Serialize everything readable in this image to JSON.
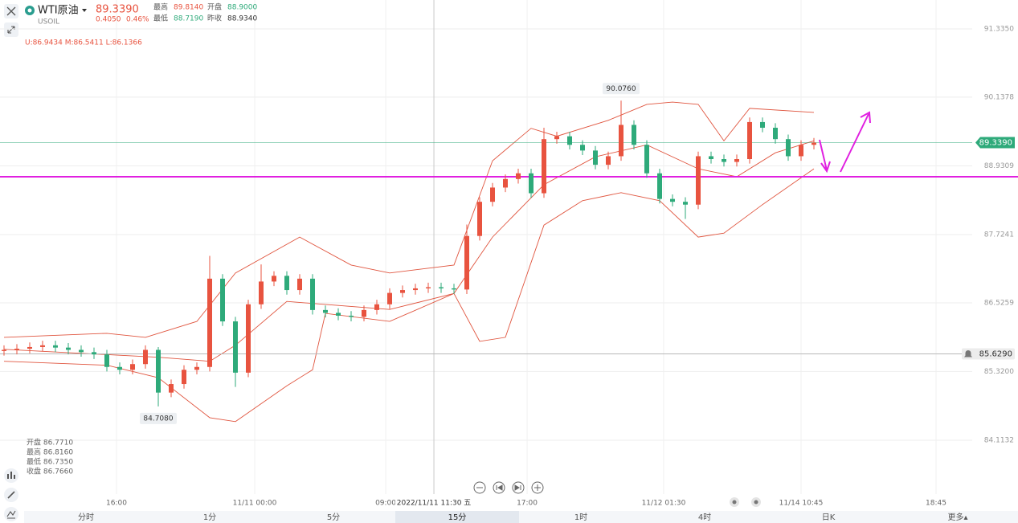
{
  "header": {
    "symbol": "WTI原油",
    "code": "USOIL",
    "price": "89.3390",
    "change": "0.4050",
    "change_pct": "0.46%",
    "stats": [
      [
        "最高",
        "89.8140"
      ],
      [
        "开盘",
        "88.9000"
      ],
      [
        "最低",
        "88.7190"
      ],
      [
        "昨收",
        "88.9340"
      ]
    ]
  },
  "indicator": "U:86.9434  M:86.5411  L:86.1366",
  "ohlc_panel": [
    "开盘 86.7710",
    "最高 86.8160",
    "最低 86.7350",
    "收盘 86.7660"
  ],
  "tabs": [
    "分时",
    "1分",
    "5分",
    "15分",
    "1时",
    "4时",
    "日K",
    "更多▴"
  ],
  "active_tab": 3,
  "chart_data": {
    "type": "candlestick",
    "up_color": "#e8533f",
    "down_color": "#2eaa7a",
    "xlim": [
      -0.3125,
      75.3125
    ],
    "xticks": [
      {
        "value": 8.75,
        "label": "16:00"
      },
      {
        "value": 19.5,
        "label": "11/11 00:00"
      },
      {
        "value": 29.69,
        "label": "09:00"
      },
      {
        "value": 40.69,
        "label": "17:00"
      },
      {
        "value": 51.31,
        "label": "11/12 01:30"
      },
      {
        "value": 62,
        "label": "11/14 10:45"
      },
      {
        "value": 72.5,
        "label": "18:45"
      }
    ],
    "ylim": [
      83.168,
      91.843
    ],
    "yticks": [
      {
        "value": 91.335,
        "label": "91.3350"
      },
      {
        "value": 90.1378,
        "label": "90.1378"
      },
      {
        "value": 88.9309,
        "label": "88.9309"
      },
      {
        "value": 87.7241,
        "label": "87.7241"
      },
      {
        "value": 86.5259,
        "label": "86.5259"
      },
      {
        "value": 85.32,
        "label": "85.3200"
      },
      {
        "value": 84.1132,
        "label": "84.1132"
      }
    ],
    "grid": true,
    "candles": {
      "open": [
        85.68,
        85.7,
        85.72,
        85.75,
        85.78,
        85.74,
        85.7,
        85.66,
        85.62,
        85.4,
        85.35,
        85.45,
        85.7,
        84.95,
        85.1,
        85.35,
        85.4,
        86.95,
        86.2,
        85.3,
        86.5,
        86.9,
        87.0,
        86.75,
        86.95,
        86.4,
        86.35,
        86.3,
        86.28,
        86.4,
        86.5,
        86.7,
        86.75,
        86.78,
        86.8,
        86.78,
        86.76,
        87.7,
        88.3,
        88.55,
        88.7,
        88.8,
        88.45,
        89.4,
        89.45,
        89.3,
        89.2,
        88.95,
        89.1,
        89.65,
        89.3,
        88.8,
        88.35,
        88.3,
        88.25,
        89.1,
        89.05,
        89.0,
        89.05,
        89.7,
        89.6,
        89.4,
        89.1,
        89.3
      ],
      "high": [
        85.78,
        85.8,
        85.83,
        85.86,
        85.86,
        85.82,
        85.78,
        85.74,
        85.7,
        85.48,
        85.53,
        85.78,
        85.75,
        85.18,
        85.43,
        85.48,
        87.35,
        87.03,
        86.28,
        86.58,
        87.2,
        87.08,
        87.08,
        87.03,
        87.03,
        86.48,
        86.43,
        86.38,
        86.48,
        86.58,
        86.78,
        86.83,
        86.86,
        86.88,
        86.88,
        86.86,
        87.9,
        88.38,
        88.63,
        88.78,
        88.88,
        88.88,
        89.6,
        89.53,
        89.53,
        89.38,
        89.28,
        89.18,
        90.076,
        89.73,
        89.38,
        88.88,
        88.43,
        88.38,
        89.18,
        89.18,
        89.13,
        89.13,
        89.78,
        89.78,
        89.68,
        89.48,
        89.38,
        89.42
      ],
      "low": [
        85.6,
        85.62,
        85.64,
        85.67,
        85.66,
        85.62,
        85.58,
        85.54,
        85.32,
        85.27,
        85.27,
        85.37,
        84.708,
        84.87,
        85.02,
        85.27,
        85.32,
        86.12,
        85.05,
        85.22,
        86.42,
        86.82,
        86.67,
        86.67,
        86.32,
        86.27,
        86.22,
        86.2,
        86.2,
        86.32,
        86.42,
        86.62,
        86.67,
        86.7,
        86.7,
        86.68,
        86.68,
        87.62,
        88.22,
        88.47,
        88.62,
        88.37,
        88.37,
        89.32,
        89.22,
        89.12,
        88.87,
        88.87,
        89.02,
        89.22,
        88.72,
        88.27,
        88.22,
        88.0,
        88.17,
        88.97,
        88.92,
        88.92,
        88.97,
        89.52,
        89.32,
        89.02,
        89.02,
        89.22
      ],
      "close": [
        85.7,
        85.72,
        85.75,
        85.78,
        85.74,
        85.7,
        85.66,
        85.62,
        85.4,
        85.35,
        85.45,
        85.7,
        84.95,
        85.1,
        85.35,
        85.4,
        86.95,
        86.2,
        85.3,
        86.5,
        86.9,
        87.0,
        86.75,
        86.95,
        86.4,
        86.35,
        86.3,
        86.28,
        86.4,
        86.5,
        86.7,
        86.75,
        86.78,
        86.8,
        86.78,
        86.76,
        87.7,
        88.3,
        88.55,
        88.7,
        88.8,
        88.45,
        89.4,
        89.45,
        89.3,
        89.2,
        88.95,
        89.1,
        89.65,
        89.3,
        88.8,
        88.35,
        88.3,
        88.25,
        89.1,
        89.05,
        89.0,
        89.05,
        89.7,
        89.6,
        89.4,
        89.1,
        89.3,
        89.339
      ]
    },
    "bands": [
      {
        "color": "#e0553f",
        "x": [
          0,
          8,
          11,
          15,
          18,
          23,
          27,
          30,
          35,
          38,
          41,
          43,
          47,
          50,
          52,
          54,
          56,
          58,
          63
        ],
        "values": [
          85.92,
          85.99,
          85.92,
          86.2,
          87.05,
          87.68,
          87.19,
          87.05,
          87.19,
          89.02,
          89.59,
          89.45,
          89.73,
          90.01,
          90.05,
          90.01,
          89.37,
          89.94,
          89.87
        ]
      },
      {
        "color": "#e0553f",
        "x": [
          0,
          12,
          16,
          18,
          22,
          30,
          35,
          38,
          42,
          46,
          50,
          54,
          57,
          60,
          63
        ],
        "values": [
          85.71,
          85.57,
          85.5,
          85.78,
          86.55,
          86.41,
          86.69,
          87.68,
          88.6,
          89.09,
          89.3,
          88.88,
          88.74,
          89.16,
          89.37
        ]
      },
      {
        "color": "#e0553f",
        "x": [
          0,
          8,
          12,
          16,
          18,
          22,
          24,
          25,
          30,
          35,
          37,
          39,
          42,
          45,
          48,
          51,
          54,
          56,
          59,
          63
        ],
        "values": [
          85.5,
          85.43,
          85.21,
          84.51,
          84.44,
          85.07,
          85.35,
          86.34,
          86.2,
          86.69,
          85.85,
          85.92,
          87.89,
          88.32,
          88.46,
          88.32,
          87.68,
          87.75,
          88.25,
          88.88
        ]
      }
    ],
    "extremes": [
      {
        "x": 48,
        "value": 90.076,
        "label": "90.0760",
        "side": "top"
      },
      {
        "x": 12,
        "value": 84.708,
        "label": "84.7080",
        "side": "bottom"
      }
    ],
    "last_price": {
      "value": 89.339,
      "label": "89.3390",
      "color": "#2eaa7a"
    },
    "alert_line": {
      "value": 85.629,
      "label": "85.6290",
      "color": "#b8b8b8"
    },
    "drawn_line": {
      "value": 88.74,
      "color": "#e020e0"
    },
    "crosshair": {
      "x": 33.44,
      "label": "2022/11/11 11:30 五"
    }
  }
}
